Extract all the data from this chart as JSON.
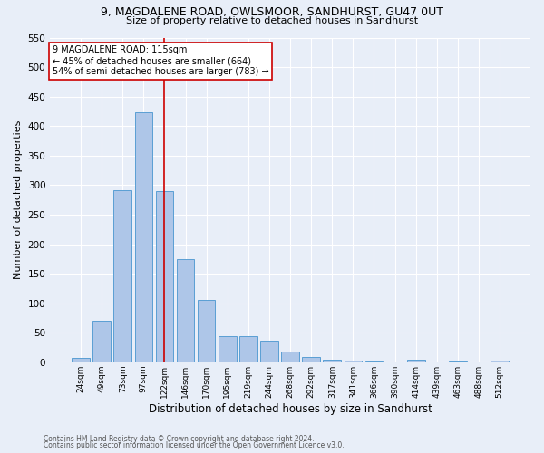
{
  "title1": "9, MAGDALENE ROAD, OWLSMOOR, SANDHURST, GU47 0UT",
  "title2": "Size of property relative to detached houses in Sandhurst",
  "xlabel": "Distribution of detached houses by size in Sandhurst",
  "ylabel": "Number of detached properties",
  "footnote1": "Contains HM Land Registry data © Crown copyright and database right 2024.",
  "footnote2": "Contains public sector information licensed under the Open Government Licence v3.0.",
  "bar_labels": [
    "24sqm",
    "49sqm",
    "73sqm",
    "97sqm",
    "122sqm",
    "146sqm",
    "170sqm",
    "195sqm",
    "219sqm",
    "244sqm",
    "268sqm",
    "292sqm",
    "317sqm",
    "341sqm",
    "366sqm",
    "390sqm",
    "414sqm",
    "439sqm",
    "463sqm",
    "488sqm",
    "512sqm"
  ],
  "bar_values": [
    8,
    70,
    291,
    424,
    290,
    175,
    105,
    44,
    44,
    37,
    18,
    9,
    5,
    2,
    1,
    0,
    4,
    0,
    1,
    0,
    3
  ],
  "bar_color": "#aec6e8",
  "bar_edge_color": "#5a9fd4",
  "ylim": [
    0,
    550
  ],
  "yticks": [
    0,
    50,
    100,
    150,
    200,
    250,
    300,
    350,
    400,
    450,
    500,
    550
  ],
  "vline_x": 4,
  "vline_color": "#cc0000",
  "annotation_text": "9 MAGDALENE ROAD: 115sqm\n← 45% of detached houses are smaller (664)\n54% of semi-detached houses are larger (783) →",
  "annotation_box_color": "#ffffff",
  "annotation_box_edge": "#cc0000",
  "bg_color": "#e8eef8",
  "grid_color": "#ffffff"
}
